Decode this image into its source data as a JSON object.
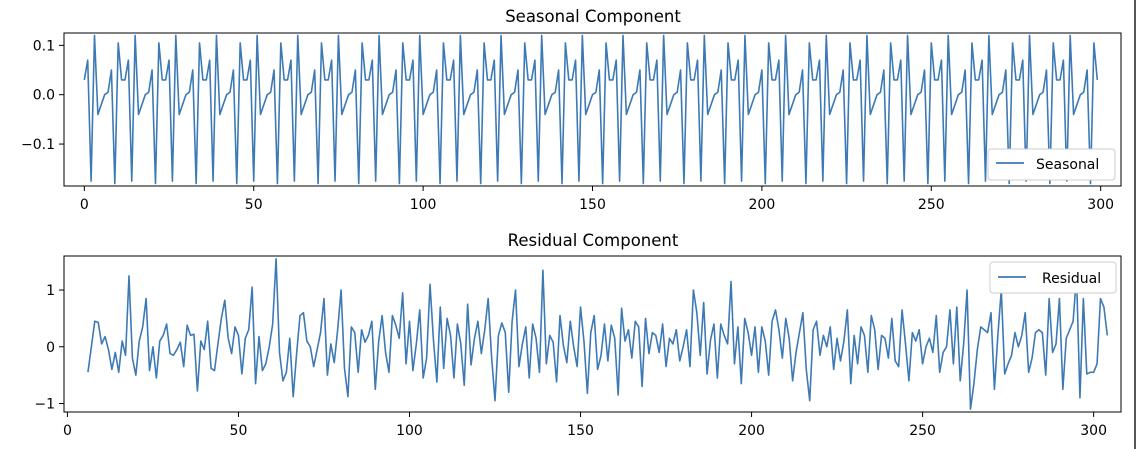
{
  "chart_data": [
    {
      "type": "line",
      "title": "Seasonal Component",
      "xlim": [
        -6,
        306
      ],
      "ylim": [
        -0.185,
        0.125
      ],
      "xticks": [
        0,
        50,
        100,
        150,
        200,
        250,
        300
      ],
      "yticks": [
        0.1,
        0.0,
        -0.1
      ],
      "ytick_labels": [
        "0.1",
        "0.0",
        "−0.1"
      ],
      "legend": "bottom-right",
      "period": 12,
      "pattern": [
        0.03,
        0.07,
        -0.175,
        0.12,
        -0.04,
        -0.02,
        0.0,
        0.005,
        0.05,
        -0.18,
        0.105,
        0.03
      ],
      "x_start": 0,
      "x_end": 299,
      "series": [
        {
          "name": "Seasonal",
          "color": "#3d7ab5"
        }
      ]
    },
    {
      "type": "line",
      "title": "Residual Component",
      "xlim": [
        -1,
        308
      ],
      "ylim": [
        -1.15,
        1.6
      ],
      "xticks": [
        0,
        50,
        100,
        150,
        200,
        250,
        300
      ],
      "yticks": [
        1,
        0,
        -1
      ],
      "ytick_labels": [
        "1",
        "0",
        "−1"
      ],
      "legend": "top-right",
      "x_start": 6,
      "values": [
        -0.45,
        0.0,
        0.45,
        0.43,
        0.05,
        0.18,
        -0.05,
        -0.4,
        -0.1,
        -0.45,
        0.1,
        -0.15,
        1.25,
        -0.2,
        -0.5,
        0.1,
        0.35,
        0.85,
        -0.42,
        0.0,
        -0.55,
        0.1,
        0.2,
        0.4,
        -0.12,
        -0.15,
        -0.05,
        0.08,
        -0.35,
        0.38,
        0.2,
        0.22,
        -0.78,
        0.1,
        -0.05,
        0.45,
        -0.38,
        -0.42,
        0.05,
        0.5,
        0.82,
        0.15,
        -0.12,
        0.35,
        0.2,
        -0.48,
        0.15,
        0.3,
        1.05,
        -0.65,
        0.18,
        -0.42,
        -0.3,
        0.0,
        0.4,
        1.55,
        -0.1,
        -0.6,
        -0.45,
        0.15,
        -0.88,
        -0.12,
        0.55,
        0.6,
        0.1,
        0.0,
        -0.35,
        -0.05,
        0.25,
        0.85,
        -0.5,
        0.05,
        -0.28,
        0.3,
        1.0,
        -0.38,
        -0.88,
        0.35,
        0.25,
        -0.45,
        0.3,
        0.08,
        0.2,
        0.45,
        -0.75,
        0.1,
        0.55,
        -0.1,
        -0.45,
        0.55,
        0.38,
        0.15,
        0.95,
        -0.3,
        0.45,
        -0.42,
        0.05,
        0.65,
        -0.55,
        -0.2,
        1.1,
        0.12,
        -0.62,
        0.7,
        -0.38,
        0.5,
        0.2,
        -0.55,
        0.4,
        0.05,
        -0.68,
        0.75,
        -0.32,
        0.15,
        0.45,
        -0.12,
        0.3,
        0.85,
        -0.18,
        -0.95,
        0.2,
        0.42,
        0.25,
        -0.8,
        0.45,
        1.0,
        -0.35,
        0.05,
        0.35,
        -0.55,
        0.4,
        0.15,
        -0.45,
        1.35,
        -0.3,
        0.2,
        0.08,
        -0.62,
        0.55,
        0.02,
        -0.28,
        0.45,
        0.0,
        -0.35,
        0.7,
        0.1,
        -0.82,
        0.25,
        0.55,
        -0.4,
        -0.15,
        0.4,
        -0.25,
        0.38,
        0.15,
        -0.85,
        0.68,
        0.1,
        0.3,
        -0.2,
        0.45,
        0.35,
        -0.7,
        0.5,
        -0.12,
        0.25,
        0.2,
        -0.1,
        0.4,
        -0.35,
        0.15,
        0.05,
        0.3,
        -0.25,
        0.0,
        0.3,
        -0.35,
        1.0,
        0.6,
        -0.15,
        0.78,
        -0.48,
        0.12,
        0.4,
        -0.55,
        0.4,
        0.2,
        0.05,
        1.15,
        -0.3,
        0.35,
        -0.65,
        0.5,
        0.25,
        -0.15,
        0.35,
        -0.45,
        0.35,
        0.1,
        -0.5,
        0.45,
        0.65,
        0.3,
        -0.2,
        0.5,
        0.15,
        -0.6,
        -0.1,
        0.25,
        0.6,
        -0.4,
        -0.95,
        0.3,
        0.45,
        -0.15,
        0.2,
        0.0,
        0.35,
        -0.4,
        0.15,
        -0.25,
        0.1,
        0.65,
        -0.65,
        0.2,
        -0.3,
        0.35,
        0.2,
        -0.45,
        0.55,
        0.3,
        -0.4,
        0.2,
        0.15,
        -0.2,
        0.5,
        -0.25,
        -0.35,
        0.65,
        0.05,
        -0.6,
        0.25,
        0.1,
        0.3,
        -0.3,
        0.0,
        0.15,
        -0.1,
        0.55,
        -0.45,
        -0.1,
        0.0,
        0.65,
        -0.3,
        0.7,
        -0.6,
        0.05,
        1.0,
        -1.1,
        -0.65,
        -0.05,
        0.35,
        0.3,
        0.25,
        0.6,
        -0.75,
        0.2,
        1.0,
        -0.48,
        -0.3,
        -0.15,
        0.25,
        0.0,
        0.2,
        0.6,
        -0.45,
        -0.2,
        0.25,
        0.3,
        0.25,
        -0.5,
        0.85,
        -0.1,
        0.05,
        0.85,
        -0.75,
        0.15,
        0.3,
        0.45,
        1.25,
        -0.9,
        0.85,
        -0.48,
        -0.45,
        -0.45,
        -0.3,
        0.85,
        0.7,
        0.2
      ],
      "series": [
        {
          "name": "Residual",
          "color": "#3d7ab5"
        }
      ]
    }
  ]
}
